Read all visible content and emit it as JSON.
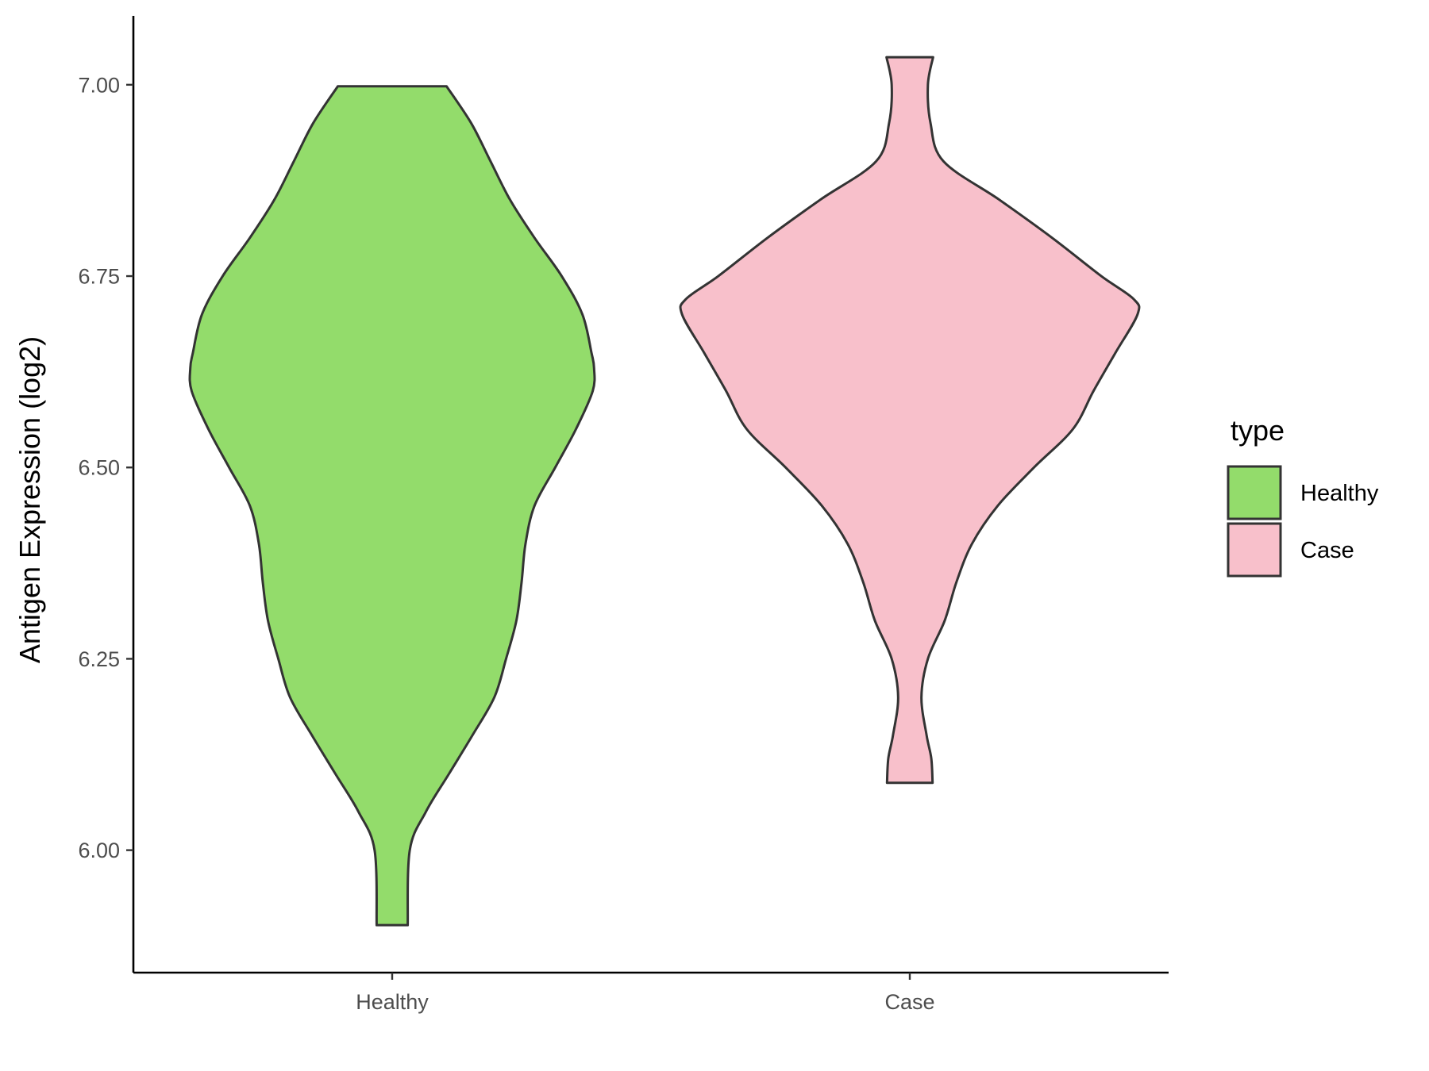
{
  "chart_data": {
    "type": "violin",
    "ylabel": "Antigen Expression (log2)",
    "ylim": [
      5.84,
      7.09
    ],
    "y_ticks": [
      {
        "value": 6.0,
        "label": "6.00"
      },
      {
        "value": 6.25,
        "label": "6.25"
      },
      {
        "value": 6.5,
        "label": "6.50"
      },
      {
        "value": 6.75,
        "label": "6.75"
      },
      {
        "value": 7.0,
        "label": "7.00"
      }
    ],
    "categories": [
      "Healthy",
      "Case"
    ],
    "legend": {
      "title": "type",
      "position": "right",
      "entries": [
        {
          "label": "Healthy",
          "color": "#93dc6b"
        },
        {
          "label": "Case",
          "color": "#f8c0cb"
        }
      ]
    },
    "grid": false,
    "series": [
      {
        "name": "Healthy",
        "color": "#93dc6b",
        "y_min": 5.902,
        "y_max": 6.998,
        "density": [
          [
            5.902,
            0.06
          ],
          [
            6.0,
            0.068
          ],
          [
            6.05,
            0.13
          ],
          [
            6.1,
            0.22
          ],
          [
            6.15,
            0.31
          ],
          [
            6.2,
            0.395
          ],
          [
            6.25,
            0.44
          ],
          [
            6.3,
            0.48
          ],
          [
            6.35,
            0.5
          ],
          [
            6.4,
            0.515
          ],
          [
            6.45,
            0.55
          ],
          [
            6.5,
            0.63
          ],
          [
            6.55,
            0.71
          ],
          [
            6.6,
            0.775
          ],
          [
            6.63,
            0.78
          ],
          [
            6.65,
            0.77
          ],
          [
            6.7,
            0.735
          ],
          [
            6.75,
            0.655
          ],
          [
            6.8,
            0.55
          ],
          [
            6.85,
            0.455
          ],
          [
            6.9,
            0.38
          ],
          [
            6.95,
            0.305
          ],
          [
            6.998,
            0.21
          ]
        ]
      },
      {
        "name": "Case",
        "color": "#f8c0cb",
        "y_min": 6.088,
        "y_max": 7.036,
        "density": [
          [
            6.088,
            0.088
          ],
          [
            6.12,
            0.083
          ],
          [
            6.15,
            0.065
          ],
          [
            6.2,
            0.045
          ],
          [
            6.25,
            0.07
          ],
          [
            6.3,
            0.135
          ],
          [
            6.35,
            0.18
          ],
          [
            6.4,
            0.24
          ],
          [
            6.45,
            0.34
          ],
          [
            6.5,
            0.48
          ],
          [
            6.55,
            0.63
          ],
          [
            6.6,
            0.71
          ],
          [
            6.65,
            0.795
          ],
          [
            6.7,
            0.88
          ],
          [
            6.72,
            0.865
          ],
          [
            6.75,
            0.74
          ],
          [
            6.8,
            0.55
          ],
          [
            6.85,
            0.345
          ],
          [
            6.9,
            0.13
          ],
          [
            6.95,
            0.08
          ],
          [
            7.0,
            0.07
          ],
          [
            7.036,
            0.09
          ]
        ]
      }
    ]
  }
}
